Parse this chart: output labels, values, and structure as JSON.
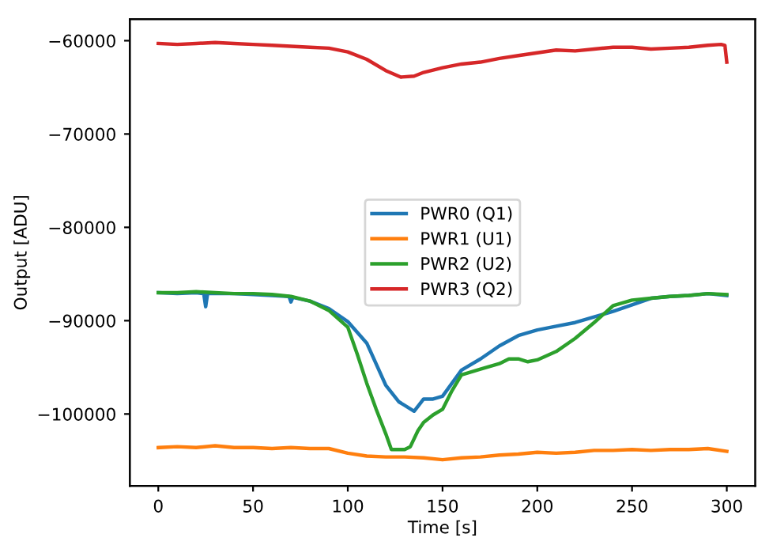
{
  "chart_data": {
    "type": "line",
    "xlabel": "Time [s]",
    "ylabel": "Output [ADU]",
    "xlim": [
      -15,
      315
    ],
    "ylim": [
      -107700,
      -57700
    ],
    "xticks": [
      0,
      50,
      100,
      150,
      200,
      250,
      300
    ],
    "yticks": [
      {
        "value": -100000,
        "label": "−100000"
      },
      {
        "value": -90000,
        "label": "−90000"
      },
      {
        "value": -80000,
        "label": "−80000"
      },
      {
        "value": -70000,
        "label": "−70000"
      },
      {
        "value": -60000,
        "label": "−60000"
      }
    ],
    "legend": "center",
    "grid": false,
    "line_style": "solid",
    "marker": "none",
    "series": [
      {
        "name": "PWR0 (Q1)",
        "color": "#1f77b4",
        "x": [
          0,
          10,
          20,
          24,
          25,
          26,
          40,
          50,
          60,
          69,
          70,
          71,
          80,
          90,
          100,
          110,
          120,
          127,
          135,
          140,
          145,
          150,
          155,
          160,
          170,
          180,
          190,
          200,
          210,
          220,
          230,
          240,
          250,
          260,
          270,
          280,
          290,
          300
        ],
        "values": [
          -87000,
          -87100,
          -87000,
          -87100,
          -88500,
          -87100,
          -87100,
          -87200,
          -87300,
          -87400,
          -88000,
          -87500,
          -87900,
          -88700,
          -90100,
          -92400,
          -96900,
          -98700,
          -99700,
          -98400,
          -98400,
          -98100,
          -96700,
          -95300,
          -94100,
          -92700,
          -91600,
          -91000,
          -90600,
          -90200,
          -89600,
          -89000,
          -88300,
          -87600,
          -87400,
          -87300,
          -87100,
          -87300
        ]
      },
      {
        "name": "PWR1 (U1)",
        "color": "#ff7f0e",
        "x": [
          0,
          10,
          20,
          30,
          40,
          50,
          60,
          70,
          80,
          90,
          100,
          110,
          120,
          130,
          140,
          150,
          160,
          170,
          180,
          190,
          200,
          210,
          220,
          230,
          240,
          250,
          260,
          270,
          280,
          290,
          300
        ],
        "values": [
          -103600,
          -103500,
          -103600,
          -103400,
          -103600,
          -103600,
          -103700,
          -103600,
          -103700,
          -103700,
          -104200,
          -104500,
          -104600,
          -104600,
          -104700,
          -104900,
          -104700,
          -104600,
          -104400,
          -104300,
          -104100,
          -104200,
          -104100,
          -103900,
          -103900,
          -103800,
          -103900,
          -103800,
          -103800,
          -103700,
          -104000
        ]
      },
      {
        "name": "PWR2 (U2)",
        "color": "#2ca02c",
        "x": [
          0,
          10,
          20,
          30,
          40,
          50,
          60,
          70,
          80,
          90,
          100,
          105,
          110,
          115,
          120,
          123,
          130,
          133,
          137,
          140,
          145,
          150,
          155,
          160,
          170,
          180,
          185,
          190,
          195,
          200,
          210,
          220,
          230,
          240,
          250,
          260,
          270,
          280,
          290,
          300
        ],
        "values": [
          -87000,
          -87000,
          -86900,
          -87000,
          -87100,
          -87100,
          -87200,
          -87400,
          -87900,
          -88900,
          -90700,
          -93600,
          -96700,
          -99500,
          -102100,
          -103800,
          -103800,
          -103500,
          -101800,
          -100900,
          -100100,
          -99500,
          -97500,
          -95800,
          -95200,
          -94600,
          -94100,
          -94100,
          -94400,
          -94200,
          -93300,
          -91900,
          -90200,
          -88400,
          -87800,
          -87600,
          -87400,
          -87300,
          -87100,
          -87200
        ]
      },
      {
        "name": "PWR3 (Q2)",
        "color": "#d62728",
        "x": [
          0,
          10,
          20,
          30,
          40,
          50,
          60,
          70,
          80,
          90,
          100,
          110,
          120,
          128,
          135,
          140,
          150,
          160,
          170,
          180,
          190,
          200,
          210,
          220,
          230,
          240,
          250,
          260,
          270,
          280,
          290,
          297,
          299,
          300
        ],
        "values": [
          -60300,
          -60400,
          -60300,
          -60200,
          -60300,
          -60400,
          -60500,
          -60600,
          -60700,
          -60800,
          -61200,
          -62000,
          -63200,
          -63900,
          -63800,
          -63400,
          -62900,
          -62500,
          -62300,
          -61900,
          -61600,
          -61300,
          -61000,
          -61100,
          -60900,
          -60700,
          -60700,
          -60900,
          -60800,
          -60700,
          -60500,
          -60400,
          -60500,
          -62300
        ]
      }
    ]
  }
}
